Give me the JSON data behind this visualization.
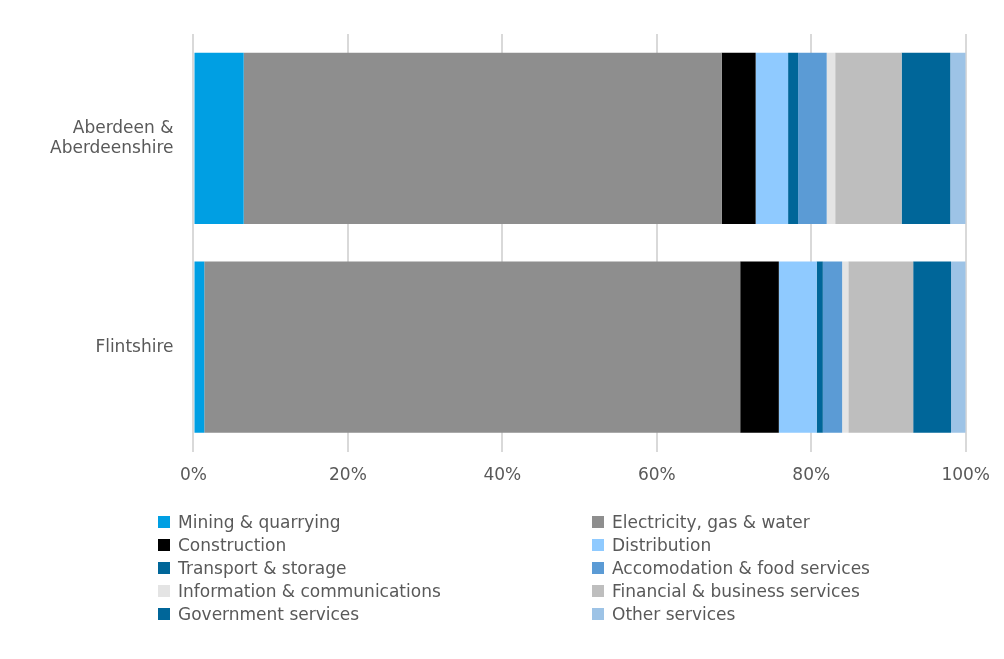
{
  "chart_data": {
    "type": "bar",
    "orientation": "horizontal",
    "stacked": true,
    "categories": [
      "Aberdeen & Aberdeenshire",
      "Flintshire"
    ],
    "series": [
      {
        "name": "Mining & quarrying",
        "color": "#009fe3",
        "values": [
          6.5,
          1.4
        ]
      },
      {
        "name": "Electricity, gas & water",
        "color": "#8e8e8e",
        "values": [
          61.9,
          69.4
        ]
      },
      {
        "name": "Construction",
        "color": "#000000",
        "values": [
          4.4,
          5.0
        ]
      },
      {
        "name": "Distribution",
        "color": "#8fcaff",
        "values": [
          4.2,
          4.9
        ]
      },
      {
        "name": "Transport & storage",
        "color": "#006699",
        "values": [
          1.3,
          0.8
        ]
      },
      {
        "name": "Accomodation & food services",
        "color": "#5b9bd5",
        "values": [
          3.7,
          2.5
        ]
      },
      {
        "name": "Information & communications",
        "color": "#e4e4e4",
        "values": [
          1.1,
          0.8
        ]
      },
      {
        "name": "Financial & business services",
        "color": "#bebebe",
        "values": [
          8.6,
          8.4
        ]
      },
      {
        "name": "Government services",
        "color": "#006699",
        "values": [
          6.3,
          4.9
        ]
      },
      {
        "name": "Other services",
        "color": "#9dc3e6",
        "values": [
          2.0,
          1.9
        ]
      }
    ],
    "xlim": [
      0,
      100
    ],
    "xticks": [
      {
        "value": 0,
        "label": "0%"
      },
      {
        "value": 20,
        "label": "20%"
      },
      {
        "value": 40,
        "label": "40%"
      },
      {
        "value": 60,
        "label": "60%"
      },
      {
        "value": 80,
        "label": "80%"
      },
      {
        "value": 100,
        "label": "100%"
      }
    ],
    "grid": "x",
    "legend": "bottom"
  }
}
